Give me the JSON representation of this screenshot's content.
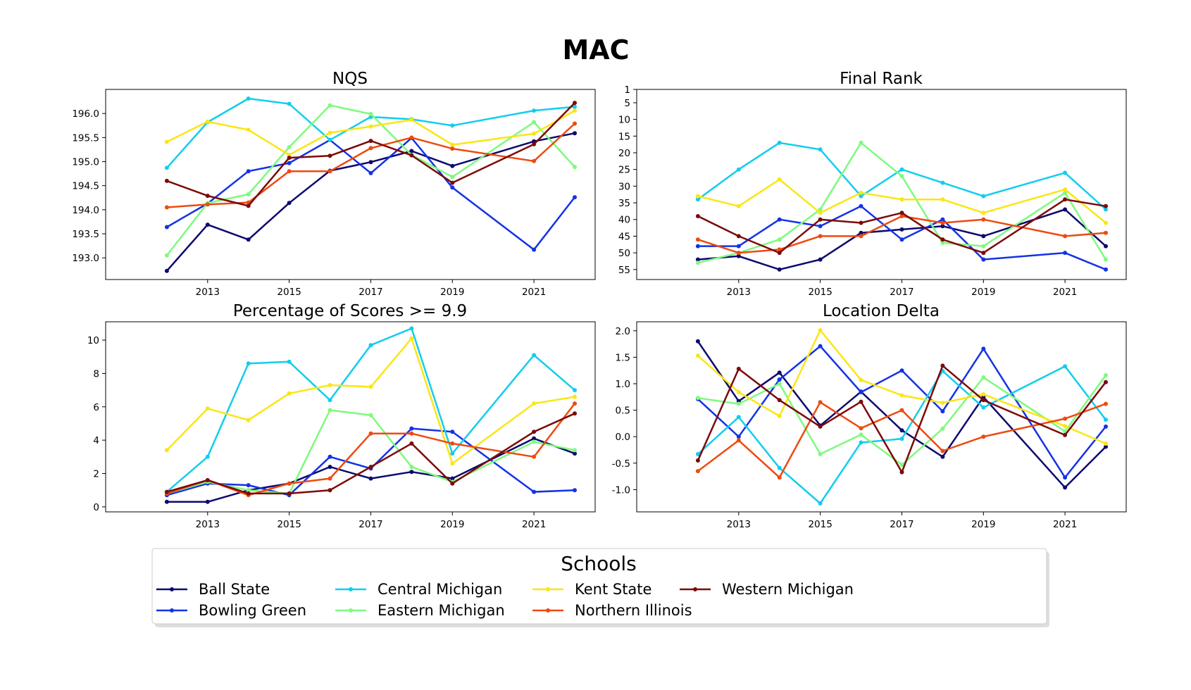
{
  "figure": {
    "title": "MAC"
  },
  "schools": [
    {
      "name": "Ball State",
      "color": "#0d0a6e"
    },
    {
      "name": "Bowling Green",
      "color": "#1432e6"
    },
    {
      "name": "Central Michigan",
      "color": "#12cdee"
    },
    {
      "name": "Eastern Michigan",
      "color": "#7efa7e"
    },
    {
      "name": "Kent State",
      "color": "#fae614"
    },
    {
      "name": "Northern Illinois",
      "color": "#ee4a10"
    },
    {
      "name": "Western Michigan",
      "color": "#7c0a0a"
    }
  ],
  "legend": {
    "title": "Schools",
    "placement": "bottom-center",
    "columns": 5
  },
  "chart_data": [
    {
      "type": "line",
      "title": "NQS",
      "xlabel": "",
      "ylabel": "",
      "x": [
        2012,
        2013,
        2014,
        2015,
        2016,
        2017,
        2018,
        2019,
        2021,
        2022
      ],
      "xticks": [
        2013,
        2015,
        2017,
        2019,
        2021
      ],
      "xlim": [
        2010.5,
        2022.5
      ],
      "yticks": [
        193.0,
        193.5,
        194.0,
        194.5,
        195.0,
        195.5,
        196.0
      ],
      "tick_decimals": 1,
      "ylim": [
        192.55,
        196.5
      ],
      "y_inverted": false,
      "series": [
        {
          "name": "Ball State",
          "values": [
            192.73,
            193.69,
            193.38,
            194.14,
            194.81,
            194.99,
            195.22,
            194.91,
            195.42,
            195.59
          ]
        },
        {
          "name": "Bowling Green",
          "values": [
            193.64,
            194.13,
            194.8,
            194.97,
            195.45,
            194.76,
            195.49,
            194.46,
            193.17,
            194.26
          ]
        },
        {
          "name": "Central Michigan",
          "values": [
            194.87,
            195.82,
            196.31,
            196.2,
            195.45,
            195.93,
            195.88,
            195.75,
            196.06,
            196.14
          ]
        },
        {
          "name": "Eastern Michigan",
          "values": [
            193.05,
            194.14,
            194.32,
            195.3,
            196.17,
            195.99,
            195.14,
            194.68,
            195.82,
            194.89
          ]
        },
        {
          "name": "Kent State",
          "values": [
            195.41,
            195.83,
            195.66,
            195.14,
            195.6,
            195.73,
            195.87,
            195.35,
            195.58,
            196.06
          ]
        },
        {
          "name": "Northern Illinois",
          "values": [
            194.05,
            194.11,
            194.15,
            194.8,
            194.8,
            195.28,
            195.5,
            195.27,
            195.01,
            195.79
          ]
        },
        {
          "name": "Western Michigan",
          "values": [
            194.6,
            194.29,
            194.08,
            195.08,
            195.12,
            195.43,
            195.13,
            194.56,
            195.36,
            196.22
          ]
        }
      ]
    },
    {
      "type": "line",
      "title": "Final Rank",
      "xlabel": "",
      "ylabel": "",
      "x": [
        2012,
        2013,
        2014,
        2015,
        2016,
        2017,
        2018,
        2019,
        2021,
        2022
      ],
      "xticks": [
        2013,
        2015,
        2017,
        2019,
        2021
      ],
      "xlim": [
        2010.5,
        2022.5
      ],
      "yticks": [
        1,
        5,
        10,
        15,
        20,
        25,
        30,
        35,
        40,
        45,
        50,
        55
      ],
      "tick_decimals": 0,
      "ylim": [
        1,
        58
      ],
      "y_inverted": true,
      "series": [
        {
          "name": "Ball State",
          "values": [
            52,
            51,
            55,
            52,
            44,
            43,
            42,
            45,
            37,
            48
          ]
        },
        {
          "name": "Bowling Green",
          "values": [
            48,
            48,
            40,
            42,
            36,
            46,
            40,
            52,
            50,
            55
          ]
        },
        {
          "name": "Central Michigan",
          "values": [
            34,
            25,
            17,
            19,
            33,
            25,
            29,
            33,
            26,
            37
          ]
        },
        {
          "name": "Eastern Michigan",
          "values": [
            53,
            50,
            46,
            37,
            17,
            27,
            47,
            48,
            32,
            52
          ]
        },
        {
          "name": "Kent State",
          "values": [
            33,
            36,
            28,
            38,
            32,
            34,
            34,
            38,
            31,
            41
          ]
        },
        {
          "name": "Northern Illinois",
          "values": [
            46,
            50,
            49,
            45,
            45,
            39,
            41,
            40,
            45,
            44
          ]
        },
        {
          "name": "Western Michigan",
          "values": [
            39,
            45,
            50,
            40,
            41,
            38,
            46,
            50,
            34,
            36
          ]
        }
      ]
    },
    {
      "type": "line",
      "title": "Percentage of Scores >= 9.9",
      "xlabel": "",
      "ylabel": "",
      "x": [
        2012,
        2013,
        2014,
        2015,
        2016,
        2017,
        2018,
        2019,
        2021,
        2022
      ],
      "xticks": [
        2013,
        2015,
        2017,
        2019,
        2021
      ],
      "xlim": [
        2010.5,
        2022.5
      ],
      "yticks": [
        0,
        2,
        4,
        6,
        8,
        10
      ],
      "tick_decimals": 0,
      "ylim": [
        -0.3,
        11.1
      ],
      "y_inverted": false,
      "series": [
        {
          "name": "Ball State",
          "values": [
            0.3,
            0.3,
            1.0,
            1.4,
            2.4,
            1.7,
            2.1,
            1.7,
            4.1,
            3.2
          ]
        },
        {
          "name": "Bowling Green",
          "values": [
            0.7,
            1.4,
            1.3,
            0.7,
            3.0,
            2.3,
            4.7,
            4.5,
            0.9,
            1.0
          ]
        },
        {
          "name": "Central Michigan",
          "values": [
            0.9,
            3.0,
            8.6,
            8.7,
            6.4,
            9.7,
            10.7,
            3.2,
            9.1,
            7.0
          ]
        },
        {
          "name": "Eastern Michigan",
          "values": [
            0.8,
            1.5,
            1.0,
            0.8,
            5.8,
            5.5,
            2.4,
            1.5,
            3.9,
            3.4
          ]
        },
        {
          "name": "Kent State",
          "values": [
            3.4,
            5.9,
            5.2,
            6.8,
            7.3,
            7.2,
            10.1,
            2.6,
            6.2,
            6.6
          ]
        },
        {
          "name": "Northern Illinois",
          "values": [
            0.8,
            1.6,
            0.7,
            1.4,
            1.7,
            4.4,
            4.4,
            3.8,
            3.0,
            6.2
          ]
        },
        {
          "name": "Western Michigan",
          "values": [
            0.9,
            1.6,
            0.8,
            0.8,
            1.0,
            2.4,
            3.8,
            1.4,
            4.5,
            5.6
          ]
        }
      ]
    },
    {
      "type": "line",
      "title": "Location Delta",
      "xlabel": "",
      "ylabel": "",
      "x": [
        2012,
        2013,
        2014,
        2015,
        2016,
        2017,
        2018,
        2019,
        2021,
        2022
      ],
      "xticks": [
        2013,
        2015,
        2017,
        2019,
        2021
      ],
      "xlim": [
        2010.5,
        2022.5
      ],
      "yticks": [
        -1.0,
        -0.5,
        0.0,
        0.5,
        1.0,
        1.5,
        2.0
      ],
      "tick_decimals": 1,
      "ylim": [
        -1.42,
        2.17
      ],
      "y_inverted": false,
      "series": [
        {
          "name": "Ball State",
          "values": [
            1.8,
            0.67,
            1.21,
            0.21,
            0.85,
            0.12,
            -0.38,
            0.75,
            -0.96,
            -0.19
          ]
        },
        {
          "name": "Bowling Green",
          "values": [
            0.71,
            0.0,
            1.08,
            1.71,
            0.84,
            1.25,
            0.48,
            1.66,
            -0.77,
            0.19
          ]
        },
        {
          "name": "Central Michigan",
          "values": [
            -0.33,
            0.37,
            -0.59,
            -1.26,
            -0.11,
            -0.04,
            1.24,
            0.55,
            1.33,
            0.32
          ]
        },
        {
          "name": "Eastern Michigan",
          "values": [
            0.73,
            0.62,
            1.0,
            -0.33,
            0.04,
            -0.53,
            0.15,
            1.12,
            0.1,
            1.16
          ]
        },
        {
          "name": "Kent State",
          "values": [
            1.53,
            0.84,
            0.39,
            2.01,
            1.07,
            0.78,
            0.64,
            0.8,
            0.2,
            -0.13
          ]
        },
        {
          "name": "Northern Illinois",
          "values": [
            -0.65,
            -0.07,
            -0.77,
            0.65,
            0.16,
            0.5,
            -0.27,
            0.0,
            0.34,
            0.62
          ]
        },
        {
          "name": "Western Michigan",
          "values": [
            -0.45,
            1.28,
            0.69,
            0.19,
            0.66,
            -0.67,
            1.34,
            0.69,
            0.03,
            1.03
          ]
        }
      ]
    }
  ]
}
